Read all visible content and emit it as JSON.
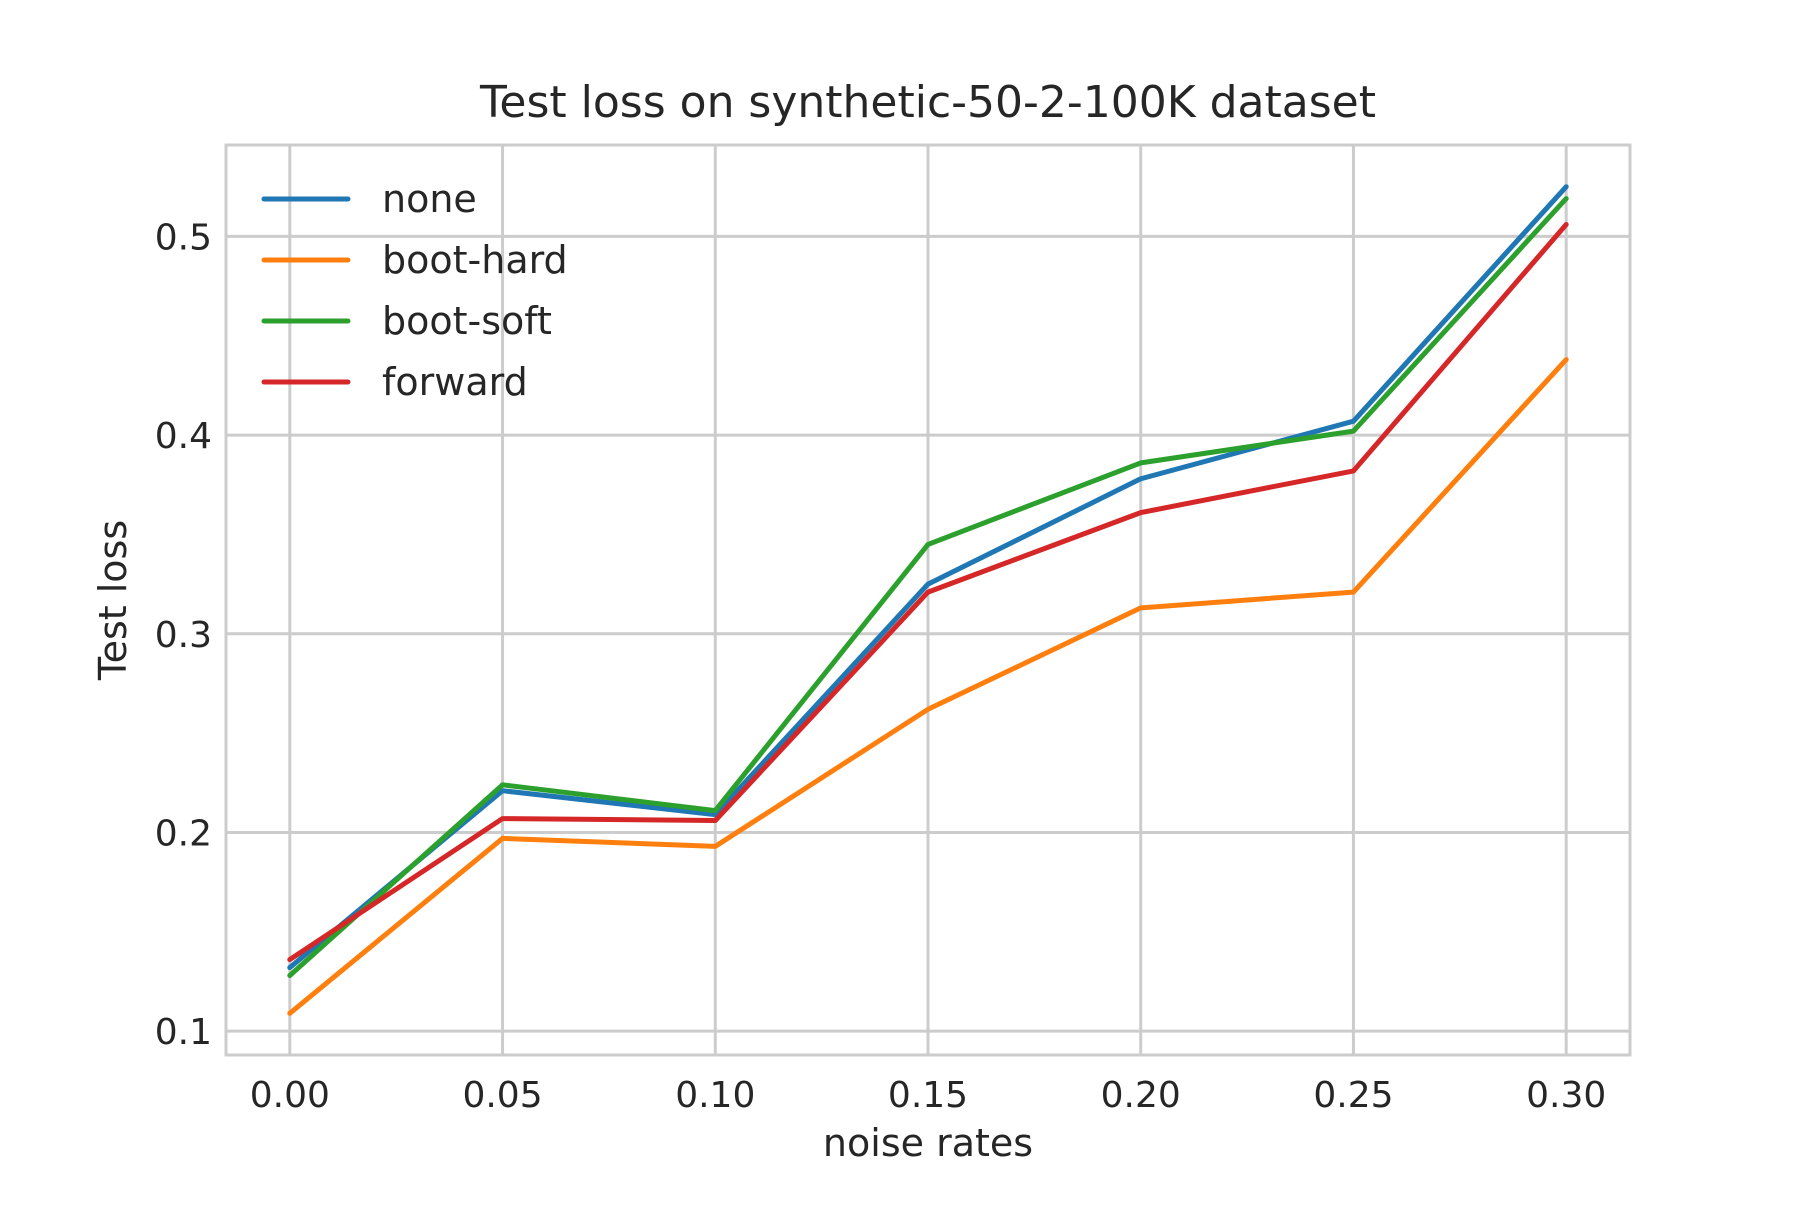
{
  "chart_data": {
    "type": "line",
    "title": "Test loss on synthetic-50-2-100K dataset",
    "xlabel": "noise rates",
    "ylabel": "Test loss",
    "x": [
      0.0,
      0.05,
      0.1,
      0.15,
      0.2,
      0.25,
      0.3
    ],
    "x_tick_labels": [
      "0.00",
      "0.05",
      "0.10",
      "0.15",
      "0.20",
      "0.25",
      "0.30"
    ],
    "y_ticks": [
      0.1,
      0.2,
      0.3,
      0.4,
      0.5
    ],
    "y_tick_labels": [
      "0.1",
      "0.2",
      "0.3",
      "0.4",
      "0.5"
    ],
    "xlim": [
      -0.015,
      0.315
    ],
    "ylim": [
      0.088,
      0.546
    ],
    "grid": true,
    "legend_position": "upper-left",
    "series": [
      {
        "name": "none",
        "color": "#1f77b4",
        "values": [
          0.132,
          0.221,
          0.209,
          0.325,
          0.378,
          0.407,
          0.525
        ]
      },
      {
        "name": "boot-hard",
        "color": "#ff7f0e",
        "values": [
          0.109,
          0.197,
          0.193,
          0.262,
          0.313,
          0.321,
          0.438
        ]
      },
      {
        "name": "boot-soft",
        "color": "#2ca02c",
        "values": [
          0.128,
          0.224,
          0.211,
          0.345,
          0.386,
          0.402,
          0.519
        ]
      },
      {
        "name": "forward",
        "color": "#d62728",
        "values": [
          0.136,
          0.207,
          0.206,
          0.321,
          0.361,
          0.382,
          0.506
        ]
      }
    ]
  }
}
